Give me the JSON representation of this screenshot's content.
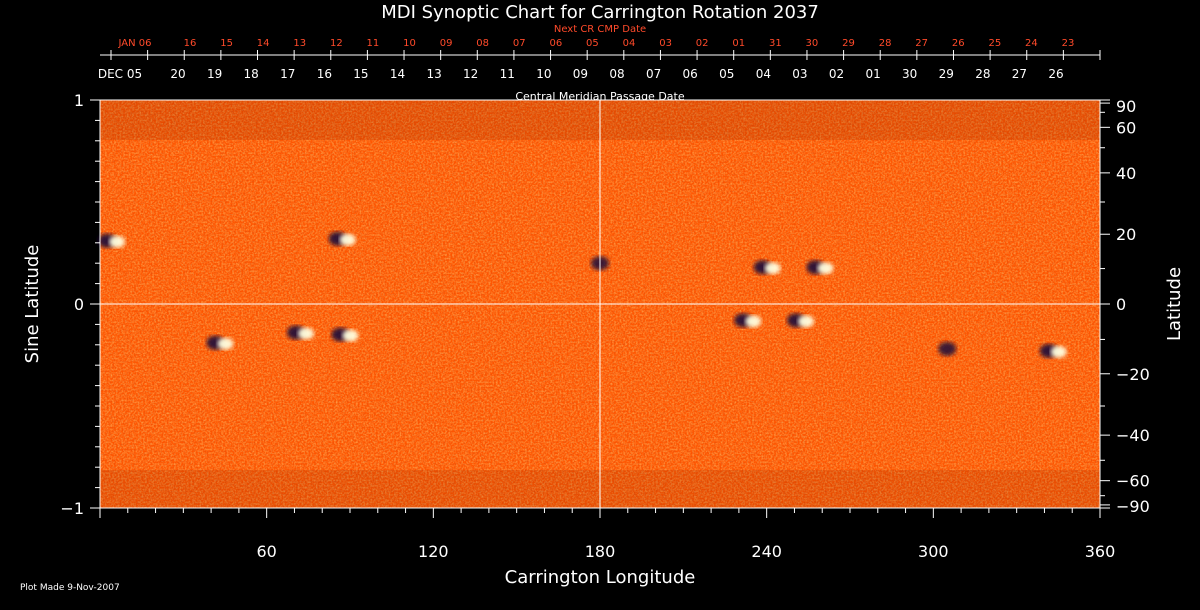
{
  "chart_data": {
    "type": "heatmap",
    "title": "MDI Synoptic Chart for Carrington Rotation 2037",
    "xlabel": "Carrington Longitude",
    "ylabel_left": "Sine Latitude",
    "ylabel_right": "Latitude",
    "top_label_red": "Next CR CMP Date",
    "top_label_white": "Central Meridian Passage Date",
    "footer": "Plot Made  9-Nov-2007",
    "x_range": [
      0,
      360
    ],
    "x_ticks": [
      60,
      120,
      180,
      240,
      300,
      360
    ],
    "y_left_range": [
      -1,
      1
    ],
    "y_left_ticks": [
      1,
      0,
      -1
    ],
    "y_left_tick_labels": [
      "1",
      "0",
      "−1"
    ],
    "y_right_ticks": [
      90,
      60,
      40,
      20,
      0,
      -20,
      -40,
      -60,
      -90
    ],
    "y_right_tick_labels": [
      "90",
      "60",
      "40",
      "20",
      "0",
      "−20",
      "−40",
      "−60",
      "−90"
    ],
    "cmp_white_dates": [
      "DEC 05",
      "20",
      "19",
      "18",
      "17",
      "16",
      "15",
      "14",
      "13",
      "12",
      "11",
      "10",
      "09",
      "08",
      "07",
      "06",
      "05",
      "04",
      "03",
      "02",
      "01",
      "30",
      "29",
      "28",
      "27",
      "26"
    ],
    "cmp_red_dates": [
      "JAN 06",
      "16",
      "15",
      "14",
      "13",
      "12",
      "11",
      "10",
      "09",
      "08",
      "07",
      "06",
      "05",
      "04",
      "03",
      "02",
      "01",
      "31",
      "30",
      "29",
      "28",
      "27",
      "26",
      "25",
      "24",
      "23"
    ],
    "colormap": {
      "background": "#ff5a00",
      "positive": "#ffffe0",
      "negative": "#1a0a3a"
    },
    "grid_lines": {
      "longitude": 180,
      "sine_latitude": 0
    },
    "active_regions": [
      {
        "lon": 4,
        "sinlat": 0.31,
        "polarity": "mixed"
      },
      {
        "lon": 87,
        "sinlat": 0.32,
        "polarity": "mixed"
      },
      {
        "lon": 180,
        "sinlat": 0.2,
        "polarity": "negative"
      },
      {
        "lon": 240,
        "sinlat": 0.18,
        "polarity": "mixed"
      },
      {
        "lon": 259,
        "sinlat": 0.18,
        "polarity": "mixed"
      },
      {
        "lon": 43,
        "sinlat": -0.19,
        "polarity": "mixed"
      },
      {
        "lon": 88,
        "sinlat": -0.15,
        "polarity": "mixed"
      },
      {
        "lon": 72,
        "sinlat": -0.14,
        "polarity": "mixed"
      },
      {
        "lon": 233,
        "sinlat": -0.08,
        "polarity": "mixed"
      },
      {
        "lon": 252,
        "sinlat": -0.08,
        "polarity": "mixed"
      },
      {
        "lon": 343,
        "sinlat": -0.23,
        "polarity": "mixed"
      },
      {
        "lon": 305,
        "sinlat": -0.22,
        "polarity": "negative"
      }
    ]
  }
}
